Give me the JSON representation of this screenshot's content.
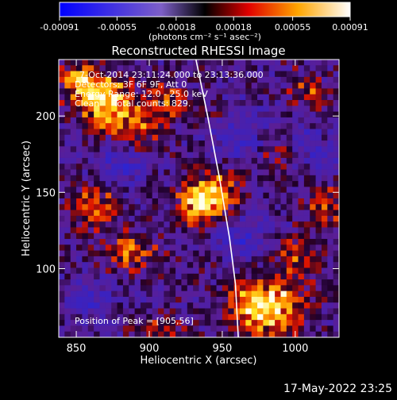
{
  "chart_data": {
    "type": "heatmap",
    "title": "Reconstructed RHESSI Image",
    "xlabel": "Heliocentric X (arcsec)",
    "ylabel": "Heliocentric Y (arcsec)",
    "xlim": [
      838,
      1030
    ],
    "ylim": [
      55,
      237
    ],
    "x_ticks": [
      850,
      900,
      950,
      1000
    ],
    "y_ticks": [
      100,
      150,
      200
    ],
    "colorbar": {
      "range": [
        -0.00091,
        0.00091
      ],
      "tick_values": [
        -0.00091,
        -0.00055,
        -0.00018,
        0.00018,
        0.00055,
        0.00091
      ],
      "tick_labels": [
        "-0.00091",
        "-0.00055",
        "-0.00018",
        "0.00018",
        "0.00055",
        "0.00091"
      ],
      "unit_label": "(photons cm⁻² s⁻¹ asec⁻²)"
    },
    "annotations": [
      "7-Oct-2014 23:11:24.000 to 23:13:36.000",
      "Detectors: 3F 6F 9F, Att 0",
      "Energy Range: 12.0 - 25.0 keV",
      "Clean     Total counts: 829."
    ],
    "peak_label": "Position of Peak = [905,56]",
    "limb_curve": [
      [
        932,
        237
      ],
      [
        940,
        200
      ],
      [
        948,
        160
      ],
      [
        955,
        120
      ],
      [
        959,
        90
      ],
      [
        961,
        55
      ]
    ],
    "blobs": [
      {
        "x": 872,
        "y": 207,
        "amp": 1.0,
        "sx": 12,
        "sy": 12
      },
      {
        "x": 853,
        "y": 222,
        "amp": 0.7,
        "sx": 10,
        "sy": 9
      },
      {
        "x": 895,
        "y": 190,
        "amp": 0.45,
        "sx": 10,
        "sy": 10
      },
      {
        "x": 912,
        "y": 210,
        "amp": 0.5,
        "sx": 9,
        "sy": 9
      },
      {
        "x": 943,
        "y": 148,
        "amp": 0.9,
        "sx": 12,
        "sy": 10
      },
      {
        "x": 930,
        "y": 140,
        "amp": 0.55,
        "sx": 9,
        "sy": 9
      },
      {
        "x": 862,
        "y": 140,
        "amp": 0.55,
        "sx": 11,
        "sy": 10
      },
      {
        "x": 888,
        "y": 110,
        "amp": 0.55,
        "sx": 12,
        "sy": 9
      },
      {
        "x": 980,
        "y": 75,
        "amp": 1.0,
        "sx": 18,
        "sy": 14
      },
      {
        "x": 1000,
        "y": 110,
        "amp": 0.4,
        "sx": 10,
        "sy": 9
      },
      {
        "x": 1020,
        "y": 140,
        "amp": 0.5,
        "sx": 8,
        "sy": 10
      },
      {
        "x": 1010,
        "y": 215,
        "amp": 0.4,
        "sx": 9,
        "sy": 9
      },
      {
        "x": 990,
        "y": 172,
        "amp": 0.3,
        "sx": 9,
        "sy": 9
      },
      {
        "x": 905,
        "y": 60,
        "amp": 0.35,
        "sx": 14,
        "sy": 7
      },
      {
        "x": 945,
        "y": 200,
        "amp": 0.25,
        "sx": 8,
        "sy": 8
      },
      {
        "x": 880,
        "y": 170,
        "amp": -0.4,
        "sx": 12,
        "sy": 10
      },
      {
        "x": 960,
        "y": 190,
        "amp": -0.35,
        "sx": 14,
        "sy": 12
      },
      {
        "x": 965,
        "y": 120,
        "amp": -0.4,
        "sx": 12,
        "sy": 12
      },
      {
        "x": 860,
        "y": 80,
        "amp": -0.3,
        "sx": 12,
        "sy": 12
      },
      {
        "x": 1010,
        "y": 180,
        "amp": -0.3,
        "sx": 10,
        "sy": 10
      }
    ]
  },
  "footer": {
    "date": "17-May-2022 23:25"
  }
}
